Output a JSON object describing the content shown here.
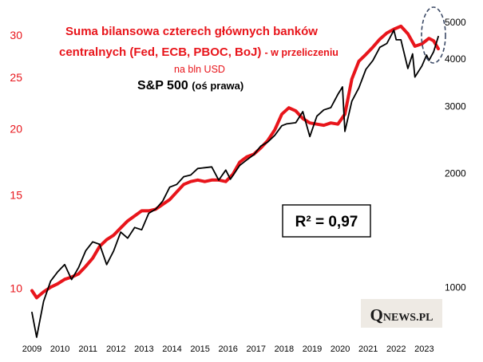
{
  "chart_data": {
    "type": "line",
    "title": "Suma bilansowa czterech głównych banków centralnych (Fed, ECB, PBOC, BoJ)",
    "title_suffix": "- w przeliczeniu",
    "subtitle": "na bln USD",
    "series_label": "S&P 500",
    "series_label_suffix": "(oś prawa)",
    "annotation": "R² = 0,97",
    "x_ticks": [
      "2009",
      "2010",
      "2011",
      "2012",
      "2013",
      "2014",
      "2015",
      "2016",
      "2017",
      "2018",
      "2019",
      "2020",
      "2021",
      "2022",
      "2023"
    ],
    "y_left": {
      "scale": "log",
      "range": [
        8.4,
        32.4
      ],
      "ticks": [
        "30",
        "25",
        "20",
        "15",
        "10"
      ],
      "color": "#e8151b"
    },
    "y_right": {
      "scale": "log",
      "range": [
        780,
        5150
      ],
      "ticks": [
        "5000",
        "4000",
        "3000",
        "2000",
        "1000"
      ]
    },
    "grid": false,
    "series": [
      {
        "axis": "left",
        "color": "#e8151b",
        "points": [
          [
            "2009-01",
            9.9
          ],
          [
            "2009-03",
            9.6
          ],
          [
            "2009-06",
            9.85
          ],
          [
            "2009-09",
            10.05
          ],
          [
            "2009-12",
            10.2
          ],
          [
            "2010-03",
            10.4
          ],
          [
            "2010-06",
            10.5
          ],
          [
            "2010-09",
            10.65
          ],
          [
            "2010-12",
            11.0
          ],
          [
            "2011-03",
            11.4
          ],
          [
            "2011-06",
            12.0
          ],
          [
            "2011-09",
            12.35
          ],
          [
            "2011-12",
            12.6
          ],
          [
            "2012-03",
            13.0
          ],
          [
            "2012-06",
            13.4
          ],
          [
            "2012-09",
            13.7
          ],
          [
            "2012-12",
            14.0
          ],
          [
            "2013-03",
            14.0
          ],
          [
            "2013-06",
            14.1
          ],
          [
            "2013-09",
            14.4
          ],
          [
            "2013-12",
            14.7
          ],
          [
            "2014-03",
            15.2
          ],
          [
            "2014-06",
            15.7
          ],
          [
            "2014-09",
            15.9
          ],
          [
            "2014-12",
            16.0
          ],
          [
            "2015-03",
            15.9
          ],
          [
            "2015-06",
            16.0
          ],
          [
            "2015-09",
            16.0
          ],
          [
            "2015-12",
            15.9
          ],
          [
            "2016-03",
            16.4
          ],
          [
            "2016-06",
            17.3
          ],
          [
            "2016-09",
            17.7
          ],
          [
            "2016-12",
            17.9
          ],
          [
            "2017-03",
            18.4
          ],
          [
            "2017-06",
            19.0
          ],
          [
            "2017-09",
            19.9
          ],
          [
            "2017-12",
            21.3
          ],
          [
            "2018-03",
            21.9
          ],
          [
            "2018-06",
            21.6
          ],
          [
            "2018-09",
            20.9
          ],
          [
            "2018-12",
            20.5
          ],
          [
            "2019-03",
            20.4
          ],
          [
            "2019-06",
            20.3
          ],
          [
            "2019-09",
            20.5
          ],
          [
            "2019-12",
            20.4
          ],
          [
            "2020-03",
            21.3
          ],
          [
            "2020-06",
            24.8
          ],
          [
            "2020-09",
            26.8
          ],
          [
            "2020-12",
            27.6
          ],
          [
            "2021-03",
            28.5
          ],
          [
            "2021-06",
            29.5
          ],
          [
            "2021-09",
            30.3
          ],
          [
            "2021-12",
            30.8
          ],
          [
            "2022-03",
            31.2
          ],
          [
            "2022-06",
            30.2
          ],
          [
            "2022-09",
            28.6
          ],
          [
            "2022-12",
            28.9
          ],
          [
            "2023-03",
            29.6
          ],
          [
            "2023-05",
            29.3
          ],
          [
            "2023-07",
            28.3
          ]
        ]
      },
      {
        "axis": "right",
        "color": "#000000",
        "points": [
          [
            "2009-01",
            860
          ],
          [
            "2009-03",
            740
          ],
          [
            "2009-06",
            920
          ],
          [
            "2009-09",
            1040
          ],
          [
            "2009-12",
            1100
          ],
          [
            "2010-03",
            1150
          ],
          [
            "2010-06",
            1050
          ],
          [
            "2010-09",
            1130
          ],
          [
            "2010-12",
            1250
          ],
          [
            "2011-03",
            1320
          ],
          [
            "2011-06",
            1300
          ],
          [
            "2011-09",
            1150
          ],
          [
            "2011-12",
            1250
          ],
          [
            "2012-03",
            1400
          ],
          [
            "2012-06",
            1350
          ],
          [
            "2012-09",
            1440
          ],
          [
            "2012-12",
            1420
          ],
          [
            "2013-03",
            1570
          ],
          [
            "2013-06",
            1610
          ],
          [
            "2013-09",
            1690
          ],
          [
            "2013-12",
            1840
          ],
          [
            "2014-03",
            1870
          ],
          [
            "2014-06",
            1960
          ],
          [
            "2014-09",
            1980
          ],
          [
            "2014-12",
            2060
          ],
          [
            "2015-03",
            2070
          ],
          [
            "2015-06",
            2080
          ],
          [
            "2015-09",
            1920
          ],
          [
            "2015-12",
            2040
          ],
          [
            "2016-02",
            1930
          ],
          [
            "2016-06",
            2100
          ],
          [
            "2016-09",
            2170
          ],
          [
            "2016-12",
            2240
          ],
          [
            "2017-03",
            2360
          ],
          [
            "2017-06",
            2420
          ],
          [
            "2017-09",
            2520
          ],
          [
            "2017-12",
            2670
          ],
          [
            "2018-02",
            2700
          ],
          [
            "2018-06",
            2720
          ],
          [
            "2018-09",
            2910
          ],
          [
            "2018-12",
            2500
          ],
          [
            "2019-03",
            2830
          ],
          [
            "2019-06",
            2940
          ],
          [
            "2019-09",
            2980
          ],
          [
            "2019-12",
            3230
          ],
          [
            "2020-02",
            3380
          ],
          [
            "2020-03",
            2580
          ],
          [
            "2020-06",
            3100
          ],
          [
            "2020-09",
            3360
          ],
          [
            "2020-12",
            3760
          ],
          [
            "2021-03",
            3970
          ],
          [
            "2021-06",
            4300
          ],
          [
            "2021-09",
            4400
          ],
          [
            "2021-12",
            4770
          ],
          [
            "2022-01",
            4500
          ],
          [
            "2022-03",
            4500
          ],
          [
            "2022-06",
            3780
          ],
          [
            "2022-08",
            4130
          ],
          [
            "2022-09",
            3590
          ],
          [
            "2022-12",
            3840
          ],
          [
            "2023-02",
            4100
          ],
          [
            "2023-03",
            3970
          ],
          [
            "2023-05",
            4180
          ],
          [
            "2023-07",
            4590
          ]
        ]
      }
    ]
  },
  "logo": {
    "q": "Q",
    "rest": "NEWS.PL"
  }
}
